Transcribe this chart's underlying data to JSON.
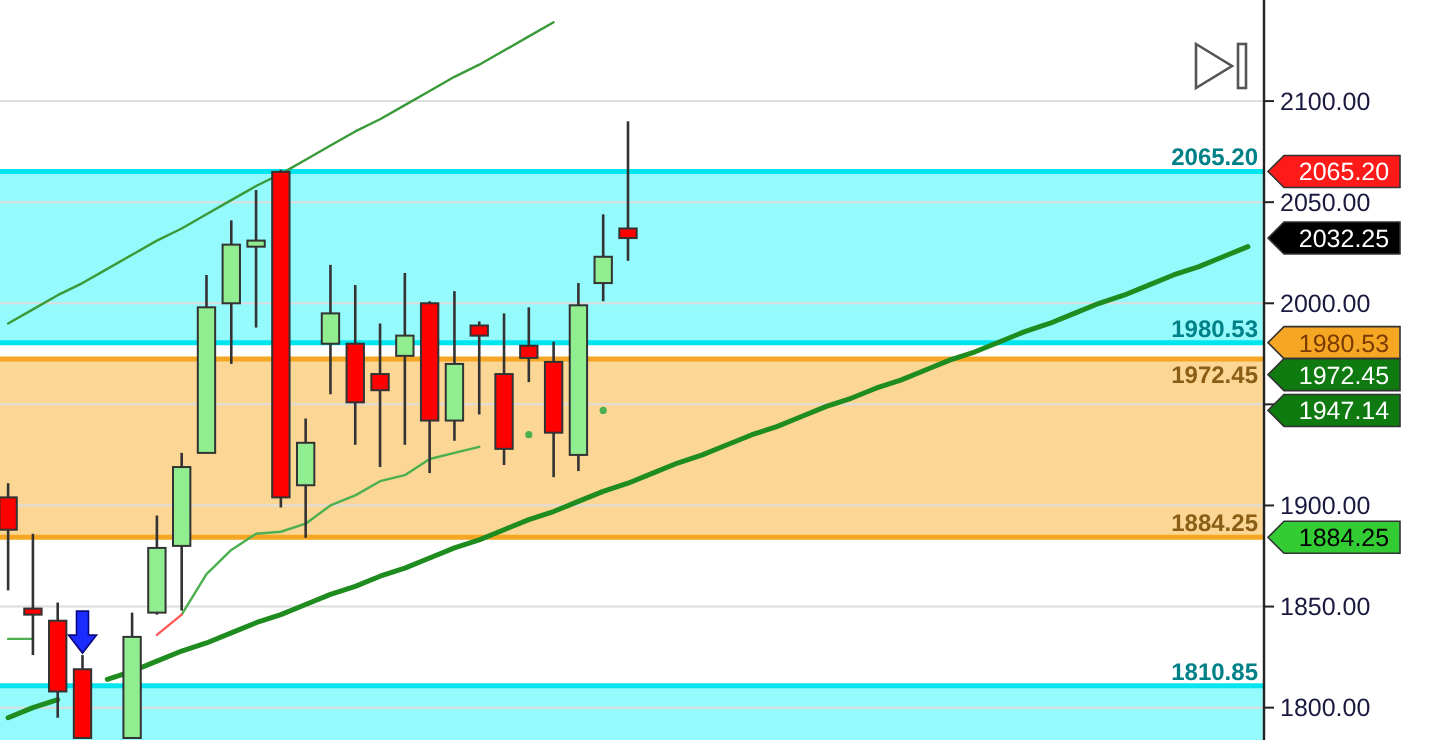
{
  "chart_data": {
    "type": "candlestick",
    "categories": [
      null,
      null,
      null,
      null,
      null,
      null,
      null,
      null,
      null,
      null,
      null,
      null,
      null,
      null,
      null,
      null,
      null,
      null,
      null,
      null,
      null,
      null,
      null,
      null,
      null,
      null,
      null,
      null,
      null,
      null,
      null,
      null,
      null,
      null,
      null,
      null,
      null,
      null,
      null,
      null,
      null,
      null,
      null,
      null,
      null,
      null,
      null,
      null,
      null,
      null,
      null
    ],
    "ohlc": [
      [
        1904,
        1911,
        1858,
        1888
      ],
      [
        1849,
        1886,
        1826,
        1846
      ],
      [
        1843,
        1852,
        1795,
        1808
      ],
      [
        1819,
        1826,
        1785,
        1785
      ],
      null,
      [
        1785,
        1847,
        1785,
        1835
      ],
      [
        1847,
        1895,
        1846,
        1879
      ],
      [
        1880,
        1926,
        1848,
        1919
      ],
      [
        1926,
        2014,
        1926,
        1998
      ],
      [
        2000,
        2041,
        1970,
        2029
      ],
      [
        2028,
        2056,
        1988,
        2031
      ],
      [
        2065,
        2066,
        1899,
        1904
      ],
      [
        1910,
        1943,
        1884,
        1931
      ],
      [
        1980,
        2019,
        1955,
        1995
      ],
      [
        1980,
        2009,
        1930,
        1951
      ],
      [
        1965,
        1990,
        1919,
        1957
      ],
      [
        1974,
        2015,
        1930,
        1984
      ],
      [
        2000,
        2001,
        1916,
        1942
      ],
      [
        1942,
        2006,
        1932,
        1970
      ],
      [
        1989,
        1991,
        1945,
        1984
      ],
      [
        1965,
        1995,
        1920,
        1928
      ],
      [
        1979,
        1998,
        1961,
        1973
      ],
      [
        1971,
        1981,
        1914,
        1936
      ],
      [
        1925,
        2010,
        1917,
        1999
      ],
      [
        2010,
        2044,
        2001,
        2023
      ],
      [
        2037,
        2090,
        2021,
        2032.25
      ],
      null,
      null,
      null,
      null,
      null,
      null,
      null,
      null,
      null,
      null,
      null,
      null,
      null,
      null,
      null,
      null,
      null,
      null,
      null,
      null,
      null,
      null,
      null,
      null,
      null
    ],
    "series": [
      {
        "type": "line",
        "color": "#4caf50",
        "values": [
          1834,
          1834,
          null,
          null,
          null,
          null,
          null,
          1846,
          1866,
          1878,
          1886,
          1887,
          1891,
          1900,
          1905,
          1912,
          1915,
          1923,
          1926,
          1929,
          null,
          1935,
          null,
          null,
          1947,
          null,
          null,
          null,
          null,
          null,
          null,
          null,
          null,
          null,
          null,
          null,
          null,
          null,
          null,
          null,
          null,
          null,
          null,
          null,
          null,
          null,
          null,
          null,
          null,
          null,
          null
        ]
      },
      {
        "type": "line",
        "color": "#ff5a5a",
        "values": [
          null,
          null,
          null,
          null,
          null,
          null,
          1836,
          1846,
          null,
          null,
          null,
          null,
          null,
          null,
          null,
          null,
          null,
          null,
          null,
          null,
          null,
          null,
          null,
          null,
          null,
          null,
          null,
          null,
          null,
          null,
          null,
          null,
          null,
          null,
          null,
          null,
          null,
          null,
          null,
          null,
          null,
          null,
          null,
          null,
          null,
          null,
          null,
          null,
          null,
          null,
          null
        ]
      },
      {
        "type": "line",
        "color": "#3a9a3a",
        "values": [
          1990,
          1997,
          2004,
          2010,
          2017,
          2024,
          2031,
          2037,
          2044,
          2051,
          2058,
          2064,
          2071,
          2078,
          2085,
          2091,
          2098,
          2105,
          2112,
          2118,
          2125,
          2132,
          2139,
          null,
          null,
          null,
          null,
          null,
          null,
          null,
          null,
          null,
          null,
          null,
          null,
          null,
          null,
          null,
          null,
          null,
          null,
          null,
          null,
          null,
          null,
          null,
          null,
          null,
          null,
          null,
          null
        ]
      },
      {
        "type": "line",
        "color": "#1e8c1e",
        "values": [
          1795,
          1800,
          1804,
          null,
          1814,
          1818,
          1823,
          1828,
          1832,
          1837,
          1842,
          1846,
          1851,
          1856,
          1860,
          1865,
          1869,
          1874,
          1879,
          1883,
          1888,
          1893,
          1897,
          1902,
          1907,
          1911,
          1916,
          1921,
          1925,
          1930,
          1935,
          1939,
          1944,
          1949,
          1953,
          1958,
          1962,
          1967,
          1972,
          1976,
          1981,
          1986,
          1990,
          1995,
          2000,
          2004,
          2009,
          2014,
          2018,
          2023,
          2028
        ]
      }
    ],
    "ylim": [
      1784,
      2150
    ],
    "yticks": [
      {
        "value": 1800,
        "label": "1800.00"
      },
      {
        "value": 1850,
        "label": "1850.00"
      },
      {
        "value": 1900,
        "label": "1900.00"
      },
      {
        "value": 1950,
        "label": null
      },
      {
        "value": 2000,
        "label": "2000.00"
      },
      {
        "value": 2050,
        "label": "2050.00"
      },
      {
        "value": 2100,
        "label": "2100.00"
      }
    ],
    "tick_labels": "y",
    "grid": "y",
    "bands": [
      {
        "axis": "y",
        "from": 1980.53,
        "to": 2065.2,
        "color": "#8efafc"
      },
      {
        "axis": "y",
        "from": 1884.25,
        "to": 1972.45,
        "color": "#fcd48f"
      },
      {
        "axis": "y",
        "from": 1784,
        "to": 1810.85,
        "color": "#8efafc"
      }
    ],
    "ref_lines": [
      {
        "axis": "y",
        "value": 2065.2,
        "label": "2065.20",
        "color": "#00e5ee"
      },
      {
        "axis": "y",
        "value": 1980.53,
        "label": "1980.53",
        "color": "#00e5ee"
      },
      {
        "axis": "y",
        "value": 1972.45,
        "label": "1972.45",
        "color": "#f5a623"
      },
      {
        "axis": "y",
        "value": 1884.25,
        "label": "1884.25",
        "color": "#f5a623"
      },
      {
        "axis": "y",
        "value": 1810.85,
        "label": "1810.85",
        "color": "#00e5ee"
      }
    ],
    "annotations": [
      "2032.25",
      "1947.14"
    ]
  }
}
